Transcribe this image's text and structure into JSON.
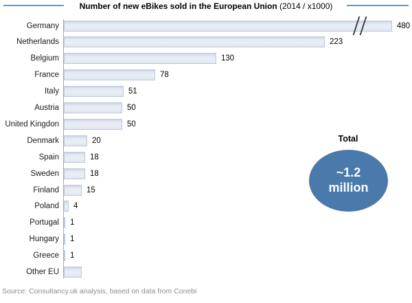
{
  "title": {
    "main": "Number of new eBikes sold in the European Union",
    "suffix": "(2014 / x1000)"
  },
  "source": "Source: Consultancy.uk analysis, based on data from Conebi",
  "total_callout": {
    "label": "Total",
    "value_line1": "~1.2",
    "value_line2": "million"
  },
  "colors": {
    "accent_line": "#5b9bd5",
    "bar_fill_light": "#eaeef6",
    "bar_fill_dark": "#ccd5e6",
    "bar_border": "#bdc8da",
    "axis_line": "#a8a8a8",
    "ellipse_fill": "#4a7aab",
    "ellipse_text": "#ffffff",
    "source_text": "#8c8c8c",
    "label_text": "#1a1a1a"
  },
  "chart_data": {
    "type": "bar",
    "orientation": "horizontal",
    "title": "Number of new eBikes sold in the European Union (2014 / x1000)",
    "unit": "thousands of eBikes (x1000)",
    "year": 2014,
    "categories": [
      "Germany",
      "Netherlands",
      "Belgium",
      "France",
      "Italy",
      "Austria",
      "United Kingdon",
      "Denmark",
      "Spain",
      "Sweden",
      "Finland",
      "Poland",
      "Portugal",
      "Hungary",
      "Greece",
      "Other EU"
    ],
    "values": [
      480,
      223,
      130,
      78,
      51,
      50,
      50,
      20,
      18,
      18,
      15,
      4,
      1,
      1,
      1,
      null
    ],
    "value_labels": [
      "480",
      "223",
      "130",
      "78",
      "51",
      "50",
      "50",
      "20",
      "18",
      "18",
      "15",
      "4",
      "1",
      "1",
      "1",
      ""
    ],
    "other_eu_estimated_value": 15,
    "axis_break": {
      "category": "Germany",
      "note": "Germany bar is truncated and marked with double slash break marks"
    },
    "total_annotation": "~1.2 million",
    "legend": false,
    "gridlines": false,
    "xlim_displayed": [
      0,
      280
    ]
  }
}
